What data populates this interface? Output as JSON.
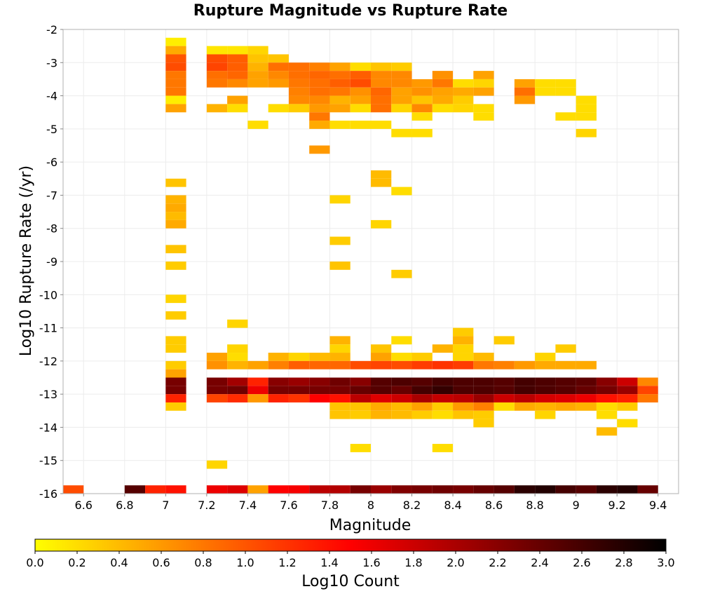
{
  "chart_data": {
    "type": "heatmap",
    "title": "Rupture Magnitude vs Rupture Rate",
    "xlabel": "Magnitude",
    "ylabel": "Log10 Rupture Rate (/yr)",
    "colorbar_label": "Log10 Count",
    "xlim": [
      6.5,
      9.5
    ],
    "ylim": [
      -16,
      -2
    ],
    "x_bin_width": 0.1,
    "y_bin_height": 0.25,
    "x_ticks": [
      "6.6",
      "6.8",
      "7",
      "7.2",
      "7.4",
      "7.6",
      "7.8",
      "8",
      "8.2",
      "8.4",
      "8.6",
      "8.8",
      "9",
      "9.2",
      "9.4"
    ],
    "x_tick_values": [
      6.6,
      6.8,
      7.0,
      7.2,
      7.4,
      7.6,
      7.8,
      8.0,
      8.2,
      8.4,
      8.6,
      8.8,
      9.0,
      9.2,
      9.4
    ],
    "y_ticks": [
      "-2",
      "-3",
      "-4",
      "-5",
      "-6",
      "-7",
      "-8",
      "-9",
      "-10",
      "-11",
      "-12",
      "-13",
      "-14",
      "-15",
      "-16"
    ],
    "y_tick_values": [
      -2,
      -3,
      -4,
      -5,
      -6,
      -7,
      -8,
      -9,
      -10,
      -11,
      -12,
      -13,
      -14,
      -15,
      -16
    ],
    "colorbar_ticks": [
      "0.0",
      "0.2",
      "0.4",
      "0.6",
      "0.8",
      "1.0",
      "1.2",
      "1.4",
      "1.6",
      "1.8",
      "2.0",
      "2.2",
      "2.4",
      "2.6",
      "2.8",
      "3.0"
    ],
    "colorbar_range": [
      0,
      3
    ],
    "colorscale": [
      "#ffff00",
      "#ff0000",
      "#000000"
    ],
    "grid": true,
    "cells": [
      [
        7.0,
        -2.5,
        0.1
      ],
      [
        7.0,
        -2.75,
        0.5
      ],
      [
        7.0,
        -3.0,
        1.0
      ],
      [
        7.0,
        -3.25,
        1.05
      ],
      [
        7.0,
        -3.5,
        0.8
      ],
      [
        7.0,
        -3.75,
        0.8
      ],
      [
        7.0,
        -4.0,
        0.8
      ],
      [
        7.0,
        -4.25,
        0.1
      ],
      [
        7.0,
        -4.5,
        0.55
      ],
      [
        7.0,
        -6.75,
        0.35
      ],
      [
        7.0,
        -7.25,
        0.45
      ],
      [
        7.0,
        -7.5,
        0.5
      ],
      [
        7.0,
        -7.75,
        0.4
      ],
      [
        7.0,
        -8.0,
        0.5
      ],
      [
        7.0,
        -8.75,
        0.35
      ],
      [
        7.0,
        -9.25,
        0.3
      ],
      [
        7.0,
        -10.25,
        0.25
      ],
      [
        7.0,
        -10.75,
        0.3
      ],
      [
        7.0,
        -11.5,
        0.3
      ],
      [
        7.0,
        -11.75,
        0.3
      ],
      [
        7.0,
        -12.25,
        0.3
      ],
      [
        7.0,
        -12.5,
        0.55
      ],
      [
        7.0,
        -12.75,
        2.3
      ],
      [
        7.0,
        -13.0,
        2.3
      ],
      [
        7.0,
        -13.25,
        1.3
      ],
      [
        7.0,
        -13.5,
        0.3
      ],
      [
        7.2,
        -2.75,
        0.15
      ],
      [
        7.3,
        -2.75,
        0.15
      ],
      [
        7.4,
        -2.75,
        0.25
      ],
      [
        7.2,
        -3.0,
        1.05
      ],
      [
        7.3,
        -3.0,
        0.95
      ],
      [
        7.4,
        -3.0,
        0.35
      ],
      [
        7.5,
        -3.0,
        0.35
      ],
      [
        7.2,
        -3.25,
        1.1
      ],
      [
        7.3,
        -3.25,
        0.95
      ],
      [
        7.4,
        -3.25,
        0.45
      ],
      [
        7.5,
        -3.25,
        0.85
      ],
      [
        7.6,
        -3.25,
        0.85
      ],
      [
        7.7,
        -3.25,
        0.75
      ],
      [
        7.8,
        -3.25,
        0.55
      ],
      [
        7.9,
        -3.25,
        0.2
      ],
      [
        8.0,
        -3.25,
        0.35
      ],
      [
        8.1,
        -3.25,
        0.3
      ],
      [
        7.2,
        -3.5,
        0.85
      ],
      [
        7.3,
        -3.5,
        0.9
      ],
      [
        7.4,
        -3.5,
        0.55
      ],
      [
        7.5,
        -3.5,
        0.7
      ],
      [
        7.6,
        -3.5,
        0.85
      ],
      [
        7.7,
        -3.5,
        0.9
      ],
      [
        7.8,
        -3.5,
        0.85
      ],
      [
        7.9,
        -3.5,
        0.95
      ],
      [
        8.0,
        -3.5,
        0.7
      ],
      [
        8.1,
        -3.5,
        0.7
      ],
      [
        8.3,
        -3.5,
        0.65
      ],
      [
        8.5,
        -3.5,
        0.55
      ],
      [
        7.2,
        -3.75,
        0.8
      ],
      [
        7.3,
        -3.75,
        0.7
      ],
      [
        7.4,
        -3.75,
        0.55
      ],
      [
        7.5,
        -3.75,
        0.6
      ],
      [
        7.6,
        -3.75,
        0.8
      ],
      [
        7.7,
        -3.75,
        0.85
      ],
      [
        7.8,
        -3.75,
        0.95
      ],
      [
        7.9,
        -3.75,
        1.05
      ],
      [
        8.0,
        -3.75,
        0.7
      ],
      [
        8.1,
        -3.75,
        0.7
      ],
      [
        8.2,
        -3.75,
        0.6
      ],
      [
        8.3,
        -3.75,
        0.8
      ],
      [
        8.4,
        -3.75,
        0.2
      ],
      [
        8.5,
        -3.75,
        0.25
      ],
      [
        8.7,
        -3.75,
        0.55
      ],
      [
        8.8,
        -3.75,
        0.2
      ],
      [
        8.9,
        -3.75,
        0.2
      ],
      [
        7.6,
        -4.0,
        0.75
      ],
      [
        7.7,
        -4.0,
        0.85
      ],
      [
        7.8,
        -4.0,
        0.8
      ],
      [
        7.9,
        -4.0,
        0.65
      ],
      [
        8.0,
        -4.0,
        0.9
      ],
      [
        8.1,
        -4.0,
        0.55
      ],
      [
        8.2,
        -4.0,
        0.65
      ],
      [
        8.3,
        -4.0,
        0.55
      ],
      [
        8.4,
        -4.0,
        0.5
      ],
      [
        8.5,
        -4.0,
        0.55
      ],
      [
        8.7,
        -4.0,
        0.85
      ],
      [
        8.8,
        -4.0,
        0.2
      ],
      [
        8.9,
        -4.0,
        0.2
      ],
      [
        7.3,
        -4.25,
        0.55
      ],
      [
        7.6,
        -4.25,
        0.7
      ],
      [
        7.7,
        -4.25,
        0.7
      ],
      [
        7.8,
        -4.25,
        0.45
      ],
      [
        7.9,
        -4.25,
        0.55
      ],
      [
        8.0,
        -4.25,
        0.85
      ],
      [
        8.1,
        -4.25,
        0.55
      ],
      [
        8.2,
        -4.25,
        0.35
      ],
      [
        8.3,
        -4.25,
        0.5
      ],
      [
        8.4,
        -4.25,
        0.3
      ],
      [
        8.7,
        -4.25,
        0.6
      ],
      [
        9.0,
        -4.25,
        0.2
      ],
      [
        7.2,
        -4.5,
        0.45
      ],
      [
        7.3,
        -4.5,
        0.2
      ],
      [
        7.5,
        -4.5,
        0.2
      ],
      [
        7.6,
        -4.5,
        0.3
      ],
      [
        7.7,
        -4.5,
        0.6
      ],
      [
        7.8,
        -4.5,
        0.55
      ],
      [
        7.9,
        -4.5,
        0.2
      ],
      [
        8.0,
        -4.5,
        0.85
      ],
      [
        8.1,
        -4.5,
        0.25
      ],
      [
        8.2,
        -4.5,
        0.7
      ],
      [
        8.3,
        -4.5,
        0.2
      ],
      [
        8.4,
        -4.5,
        0.25
      ],
      [
        8.5,
        -4.5,
        0.2
      ],
      [
        9.0,
        -4.5,
        0.2
      ],
      [
        7.7,
        -4.75,
        0.8
      ],
      [
        8.2,
        -4.75,
        0.2
      ],
      [
        8.5,
        -4.75,
        0.2
      ],
      [
        8.9,
        -4.75,
        0.2
      ],
      [
        9.0,
        -4.75,
        0.2
      ],
      [
        7.4,
        -5.0,
        0.2
      ],
      [
        7.7,
        -5.0,
        0.5
      ],
      [
        7.8,
        -5.0,
        0.2
      ],
      [
        7.9,
        -5.0,
        0.2
      ],
      [
        8.0,
        -5.0,
        0.2
      ],
      [
        8.1,
        -5.25,
        0.2
      ],
      [
        8.2,
        -5.25,
        0.2
      ],
      [
        9.0,
        -5.25,
        0.25
      ],
      [
        7.7,
        -5.75,
        0.6
      ],
      [
        8.0,
        -6.5,
        0.4
      ],
      [
        8.0,
        -6.75,
        0.4
      ],
      [
        8.1,
        -7.0,
        0.2
      ],
      [
        7.8,
        -7.25,
        0.25
      ],
      [
        8.0,
        -8.0,
        0.25
      ],
      [
        7.8,
        -8.5,
        0.3
      ],
      [
        7.8,
        -9.25,
        0.35
      ],
      [
        8.1,
        -9.5,
        0.3
      ],
      [
        7.3,
        -11.0,
        0.25
      ],
      [
        8.4,
        -11.25,
        0.3
      ],
      [
        7.8,
        -11.5,
        0.45
      ],
      [
        8.1,
        -11.5,
        0.2
      ],
      [
        8.4,
        -11.5,
        0.45
      ],
      [
        8.6,
        -11.5,
        0.3
      ],
      [
        7.3,
        -11.75,
        0.25
      ],
      [
        7.8,
        -11.75,
        0.25
      ],
      [
        8.0,
        -11.75,
        0.35
      ],
      [
        8.3,
        -11.75,
        0.45
      ],
      [
        8.4,
        -11.75,
        0.25
      ],
      [
        8.9,
        -11.75,
        0.3
      ],
      [
        7.2,
        -12.0,
        0.55
      ],
      [
        7.3,
        -12.0,
        0.2
      ],
      [
        7.5,
        -12.0,
        0.45
      ],
      [
        7.6,
        -12.0,
        0.25
      ],
      [
        7.7,
        -12.0,
        0.4
      ],
      [
        7.8,
        -12.0,
        0.45
      ],
      [
        8.0,
        -12.0,
        0.55
      ],
      [
        8.1,
        -12.0,
        0.2
      ],
      [
        8.2,
        -12.0,
        0.3
      ],
      [
        8.4,
        -12.0,
        0.25
      ],
      [
        8.5,
        -12.0,
        0.4
      ],
      [
        8.8,
        -12.0,
        0.25
      ],
      [
        7.2,
        -12.25,
        0.65
      ],
      [
        7.3,
        -12.25,
        0.45
      ],
      [
        7.4,
        -12.25,
        0.55
      ],
      [
        7.5,
        -12.25,
        0.75
      ],
      [
        7.6,
        -12.25,
        0.95
      ],
      [
        7.7,
        -12.25,
        0.9
      ],
      [
        7.8,
        -12.25,
        0.9
      ],
      [
        7.9,
        -12.25,
        1.05
      ],
      [
        8.0,
        -12.25,
        1.1
      ],
      [
        8.1,
        -12.25,
        1.05
      ],
      [
        8.2,
        -12.25,
        1.15
      ],
      [
        8.3,
        -12.25,
        1.2
      ],
      [
        8.4,
        -12.25,
        1.15
      ],
      [
        8.5,
        -12.25,
        0.8
      ],
      [
        8.6,
        -12.25,
        0.75
      ],
      [
        8.7,
        -12.25,
        0.6
      ],
      [
        8.8,
        -12.25,
        0.5
      ],
      [
        8.9,
        -12.25,
        0.5
      ],
      [
        9.0,
        -12.25,
        0.5
      ],
      [
        7.2,
        -12.75,
        2.3
      ],
      [
        7.3,
        -12.75,
        2.05
      ],
      [
        7.4,
        -12.75,
        1.3
      ],
      [
        7.5,
        -12.75,
        2.2
      ],
      [
        7.6,
        -12.75,
        2.1
      ],
      [
        7.7,
        -12.75,
        2.2
      ],
      [
        7.8,
        -12.75,
        2.35
      ],
      [
        7.9,
        -12.75,
        2.2
      ],
      [
        8.0,
        -12.75,
        2.5
      ],
      [
        8.1,
        -12.75,
        2.55
      ],
      [
        8.2,
        -12.75,
        2.5
      ],
      [
        8.3,
        -12.75,
        2.6
      ],
      [
        8.4,
        -12.75,
        2.55
      ],
      [
        8.5,
        -12.75,
        2.55
      ],
      [
        8.6,
        -12.75,
        2.5
      ],
      [
        8.7,
        -12.75,
        2.6
      ],
      [
        8.8,
        -12.75,
        2.55
      ],
      [
        8.9,
        -12.75,
        2.5
      ],
      [
        9.0,
        -12.75,
        2.45
      ],
      [
        9.1,
        -12.75,
        2.2
      ],
      [
        9.2,
        -12.75,
        1.8
      ],
      [
        9.3,
        -12.75,
        0.7
      ],
      [
        7.2,
        -13.0,
        2.3
      ],
      [
        7.3,
        -13.0,
        2.35
      ],
      [
        7.4,
        -13.0,
        1.6
      ],
      [
        7.5,
        -13.0,
        2.3
      ],
      [
        7.6,
        -13.0,
        2.3
      ],
      [
        7.7,
        -13.0,
        2.3
      ],
      [
        7.8,
        -13.0,
        2.3
      ],
      [
        7.9,
        -13.0,
        2.4
      ],
      [
        8.0,
        -13.0,
        2.5
      ],
      [
        8.1,
        -13.0,
        2.4
      ],
      [
        8.2,
        -13.0,
        2.6
      ],
      [
        8.3,
        -13.0,
        2.7
      ],
      [
        8.4,
        -13.0,
        2.55
      ],
      [
        8.5,
        -13.0,
        2.55
      ],
      [
        8.6,
        -13.0,
        2.5
      ],
      [
        8.7,
        -13.0,
        2.6
      ],
      [
        8.8,
        -13.0,
        2.55
      ],
      [
        8.9,
        -13.0,
        2.5
      ],
      [
        9.0,
        -13.0,
        2.4
      ],
      [
        9.1,
        -13.0,
        2.3
      ],
      [
        9.2,
        -13.0,
        2.1
      ],
      [
        9.3,
        -13.0,
        1.1
      ],
      [
        7.2,
        -13.25,
        1.1
      ],
      [
        7.3,
        -13.25,
        1.25
      ],
      [
        7.4,
        -13.25,
        0.6
      ],
      [
        7.5,
        -13.25,
        1.3
      ],
      [
        7.6,
        -13.25,
        1.2
      ],
      [
        7.7,
        -13.25,
        1.5
      ],
      [
        7.8,
        -13.25,
        1.4
      ],
      [
        7.9,
        -13.25,
        1.9
      ],
      [
        8.0,
        -13.25,
        1.7
      ],
      [
        8.1,
        -13.25,
        1.8
      ],
      [
        8.2,
        -13.25,
        2.0
      ],
      [
        8.3,
        -13.25,
        1.85
      ],
      [
        8.4,
        -13.25,
        1.9
      ],
      [
        8.5,
        -13.25,
        2.1
      ],
      [
        8.6,
        -13.25,
        1.8
      ],
      [
        8.7,
        -13.25,
        1.9
      ],
      [
        8.8,
        -13.25,
        1.75
      ],
      [
        8.9,
        -13.25,
        1.7
      ],
      [
        9.0,
        -13.25,
        1.6
      ],
      [
        9.1,
        -13.25,
        1.4
      ],
      [
        9.2,
        -13.25,
        1.3
      ],
      [
        9.3,
        -13.25,
        0.8
      ],
      [
        7.8,
        -13.5,
        0.35
      ],
      [
        7.9,
        -13.5,
        0.35
      ],
      [
        8.0,
        -13.5,
        0.5
      ],
      [
        8.1,
        -13.5,
        0.4
      ],
      [
        8.2,
        -13.5,
        0.55
      ],
      [
        8.3,
        -13.5,
        0.3
      ],
      [
        8.4,
        -13.5,
        0.6
      ],
      [
        8.5,
        -13.5,
        0.75
      ],
      [
        8.6,
        -13.5,
        0.2
      ],
      [
        8.7,
        -13.5,
        0.5
      ],
      [
        8.8,
        -13.5,
        0.45
      ],
      [
        8.9,
        -13.5,
        0.5
      ],
      [
        9.0,
        -13.5,
        0.45
      ],
      [
        9.1,
        -13.5,
        0.2
      ],
      [
        9.2,
        -13.5,
        0.3
      ],
      [
        7.8,
        -13.75,
        0.35
      ],
      [
        7.9,
        -13.75,
        0.3
      ],
      [
        8.0,
        -13.75,
        0.45
      ],
      [
        8.1,
        -13.75,
        0.4
      ],
      [
        8.2,
        -13.75,
        0.3
      ],
      [
        8.3,
        -13.75,
        0.2
      ],
      [
        8.4,
        -13.75,
        0.35
      ],
      [
        8.5,
        -13.75,
        0.3
      ],
      [
        8.8,
        -13.75,
        0.25
      ],
      [
        9.1,
        -13.75,
        0.2
      ],
      [
        8.5,
        -14.0,
        0.3
      ],
      [
        9.2,
        -14.0,
        0.2
      ],
      [
        9.1,
        -14.25,
        0.4
      ],
      [
        7.9,
        -14.75,
        0.2
      ],
      [
        8.3,
        -14.75,
        0.2
      ],
      [
        7.2,
        -15.25,
        0.25
      ],
      [
        6.5,
        -16.0,
        1.05
      ],
      [
        6.8,
        -16.0,
        2.5
      ],
      [
        6.9,
        -16.0,
        1.3
      ],
      [
        7.0,
        -16.0,
        1.4
      ],
      [
        7.2,
        -16.0,
        1.6
      ],
      [
        7.3,
        -16.0,
        1.7
      ],
      [
        7.4,
        -16.0,
        0.55
      ],
      [
        7.5,
        -16.0,
        1.5
      ],
      [
        7.6,
        -16.0,
        1.55
      ],
      [
        7.7,
        -16.0,
        1.9
      ],
      [
        7.8,
        -16.0,
        1.95
      ],
      [
        7.9,
        -16.0,
        2.3
      ],
      [
        8.0,
        -16.0,
        2.1
      ],
      [
        8.1,
        -16.0,
        2.25
      ],
      [
        8.2,
        -16.0,
        2.3
      ],
      [
        8.3,
        -16.0,
        2.35
      ],
      [
        8.4,
        -16.0,
        2.3
      ],
      [
        8.5,
        -16.0,
        2.4
      ],
      [
        8.6,
        -16.0,
        2.5
      ],
      [
        8.7,
        -16.0,
        2.75
      ],
      [
        8.8,
        -16.0,
        2.8
      ],
      [
        8.9,
        -16.0,
        2.6
      ],
      [
        9.0,
        -16.0,
        2.5
      ],
      [
        9.1,
        -16.0,
        2.75
      ],
      [
        9.2,
        -16.0,
        2.8
      ],
      [
        9.3,
        -16.0,
        2.4
      ]
    ]
  }
}
